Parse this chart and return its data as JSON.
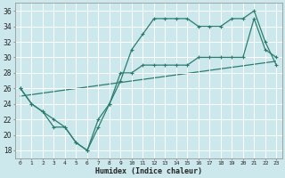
{
  "xlabel": "Humidex (Indice chaleur)",
  "ylabel": "",
  "bg_color": "#cce8ec",
  "grid_color": "#ffffff",
  "line_color": "#2a7d6e",
  "xlim": [
    -0.5,
    23.5
  ],
  "ylim": [
    17,
    37
  ],
  "xticks": [
    0,
    1,
    2,
    3,
    4,
    5,
    6,
    7,
    8,
    9,
    10,
    11,
    12,
    13,
    14,
    15,
    16,
    17,
    18,
    19,
    20,
    21,
    22,
    23
  ],
  "yticks": [
    18,
    20,
    22,
    24,
    26,
    28,
    30,
    32,
    34,
    36
  ],
  "line1_x": [
    0,
    1,
    2,
    3,
    4,
    5,
    6,
    7,
    8,
    9,
    10,
    11,
    12,
    13,
    14,
    15,
    16,
    17,
    18,
    19,
    20,
    21,
    22,
    23
  ],
  "line1_y": [
    26,
    24,
    23,
    21,
    21,
    19,
    18,
    22,
    24,
    27,
    31,
    33,
    35,
    35,
    35,
    35,
    34,
    34,
    34,
    35,
    35,
    36,
    32,
    29
  ],
  "line2_x": [
    0,
    1,
    2,
    3,
    4,
    5,
    6,
    7,
    8,
    9,
    10,
    11,
    12,
    13,
    14,
    15,
    16,
    17,
    18,
    19,
    20,
    21,
    22,
    23
  ],
  "line2_y": [
    26,
    24,
    23,
    22,
    21,
    19,
    18,
    21,
    24,
    28,
    28,
    29,
    29,
    29,
    29,
    29,
    30,
    30,
    30,
    30,
    30,
    35,
    31,
    30
  ],
  "line3_x": [
    0,
    23
  ],
  "line3_y": [
    25,
    29.5
  ]
}
